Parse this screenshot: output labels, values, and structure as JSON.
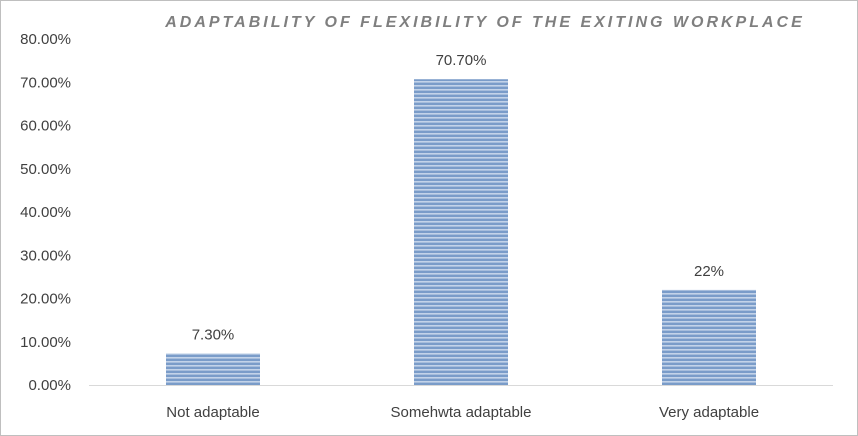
{
  "chart_data": {
    "type": "bar",
    "title": "ADAPTABILITY OF FLEXIBILITY OF THE EXITING WORKPLACE",
    "categories": [
      "Not adaptable",
      "Somehwta adaptable",
      "Very adaptable"
    ],
    "values": [
      7.3,
      70.7,
      22
    ],
    "data_labels": [
      "7.30%",
      "70.70%",
      "22%"
    ],
    "y_ticks": [
      0,
      10,
      20,
      30,
      40,
      50,
      60,
      70,
      80
    ],
    "y_tick_labels": [
      "0.00%",
      "10.00%",
      "20.00%",
      "30.00%",
      "40.00%",
      "50.00%",
      "60.00%",
      "70.00%",
      "80.00%"
    ],
    "ylim": [
      0,
      80
    ],
    "xlabel": "",
    "ylabel": "",
    "grid": false,
    "legend": "none",
    "bar_color": "#7a9cc9",
    "bar_stripe_color": "#c3d3e9"
  }
}
